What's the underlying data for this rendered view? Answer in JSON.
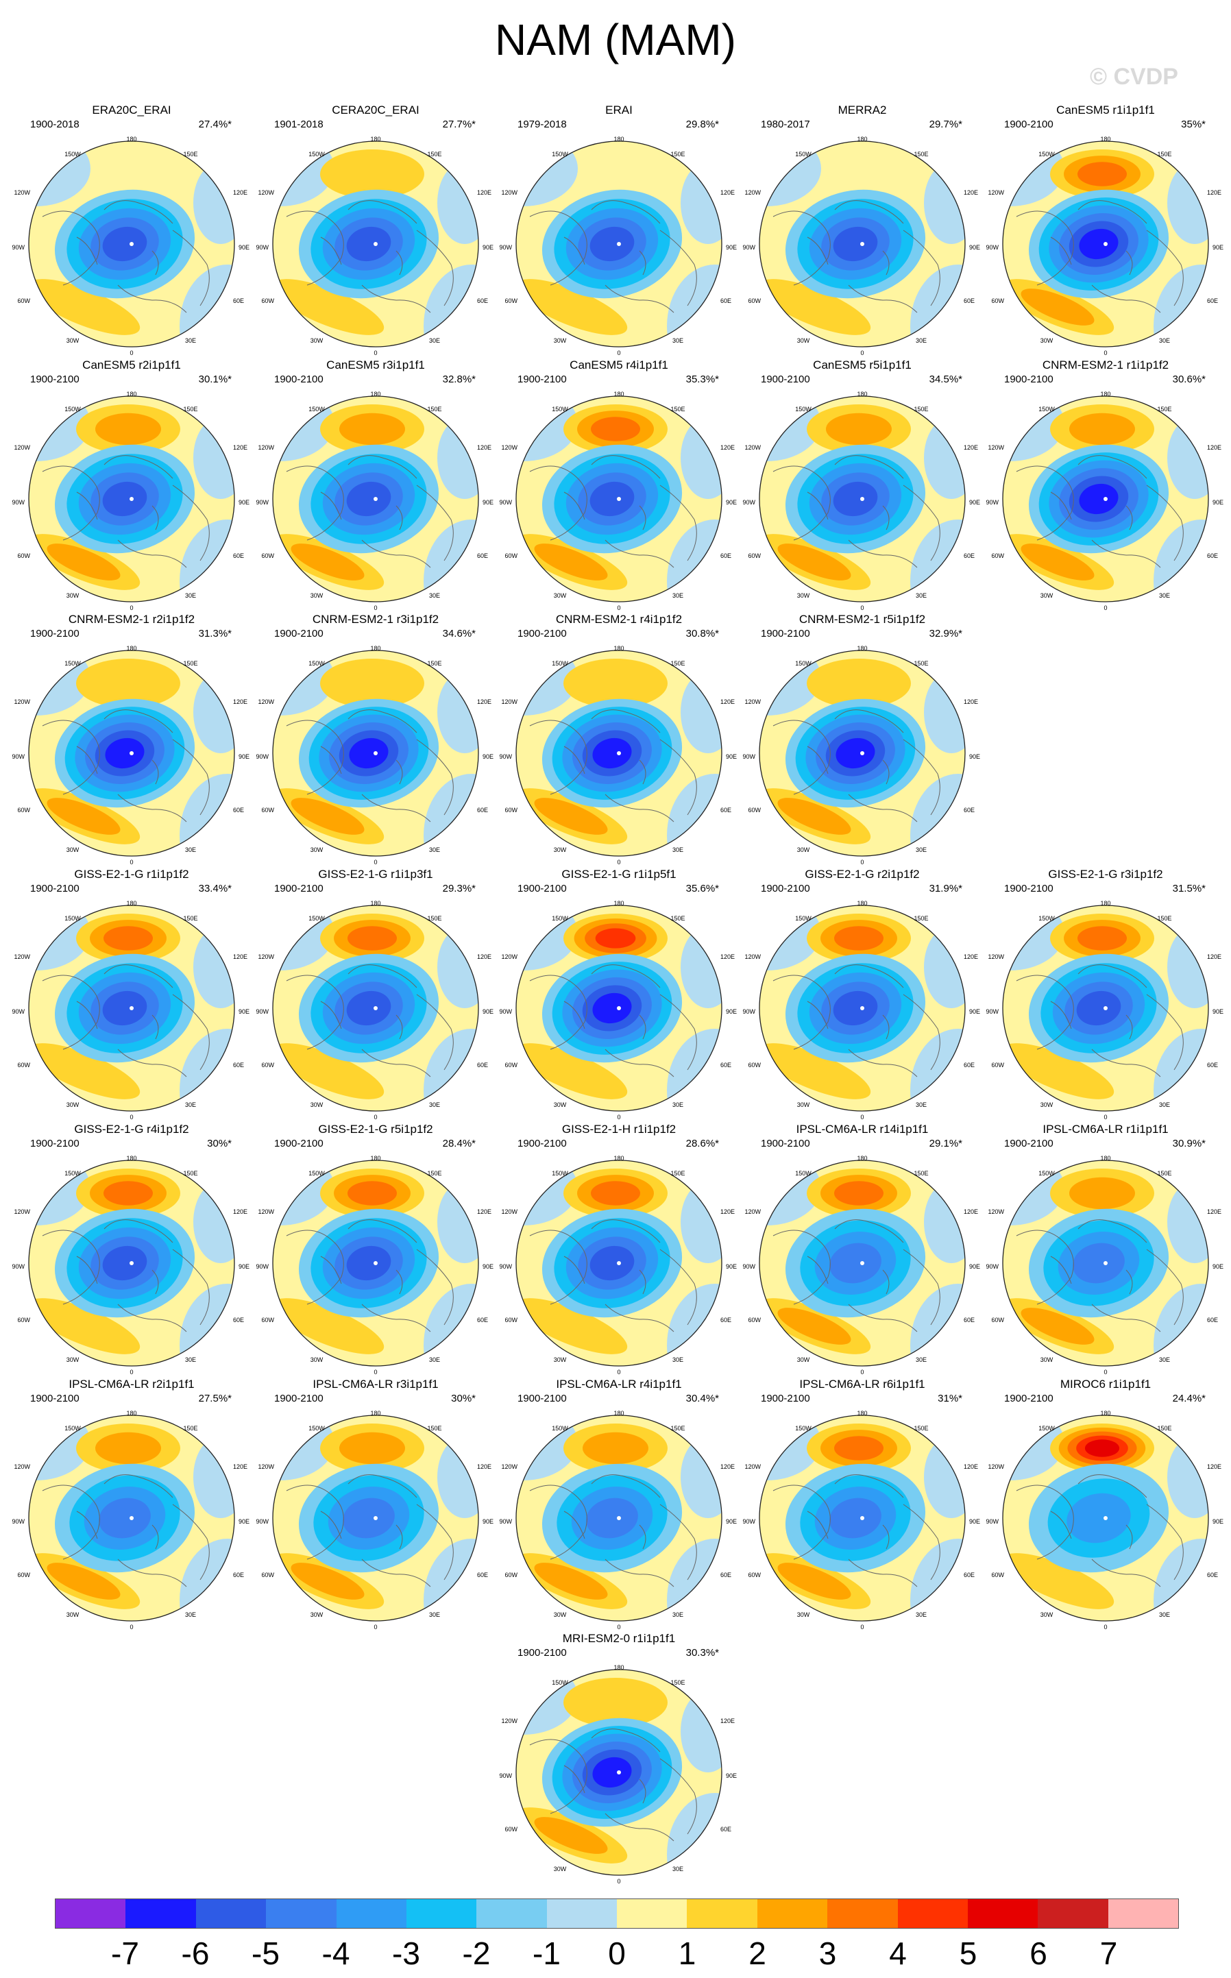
{
  "title": "NAM (MAM)",
  "watermark": "© CVDP",
  "colors": {
    "ocean_light_blue": "#b3dcf2",
    "land_pale_yellow": "#fff5a0",
    "coast": "#666666",
    "border": "#222222"
  },
  "map_labels": {
    "lon_top": "180",
    "lon_150w": "150W",
    "lon_150e": "150E",
    "lon_120w": "120W",
    "lon_120e": "120E",
    "lon_90w": "90W",
    "lon_90e": "90E",
    "lon_60w": "60W",
    "lon_60e": "60E",
    "lon_30w": "30W",
    "lon_30e": "30E",
    "lon_bottom": "0"
  },
  "panels": [
    {
      "title": "ERA20C_ERAI",
      "years": "1900-2018",
      "pct": "27.4%*",
      "pos": 0.3,
      "neg": -5,
      "atl": 1.5
    },
    {
      "title": "CERA20C_ERAI",
      "years": "1901-2018",
      "pct": "27.7%*",
      "pos": 1.5,
      "neg": -5,
      "atl": 1.5
    },
    {
      "title": "ERAI",
      "years": "1979-2018",
      "pct": "29.8%*",
      "pos": 0.3,
      "neg": -5,
      "atl": 1.5
    },
    {
      "title": "MERRA2",
      "years": "1980-2017",
      "pct": "29.7%*",
      "pos": 0.3,
      "neg": -5,
      "atl": 1.5
    },
    {
      "title": "CanESM5 r1i1p1f1",
      "years": "1900-2100",
      "pct": "35%*",
      "pos": 3.5,
      "neg": -6,
      "atl": 2
    },
    {
      "title": "CanESM5 r2i1p1f1",
      "years": "1900-2100",
      "pct": "30.1%*",
      "pos": 2.5,
      "neg": -5,
      "atl": 2
    },
    {
      "title": "CanESM5 r3i1p1f1",
      "years": "1900-2100",
      "pct": "32.8%*",
      "pos": 2.5,
      "neg": -5,
      "atl": 2
    },
    {
      "title": "CanESM5 r4i1p1f1",
      "years": "1900-2100",
      "pct": "35.3%*",
      "pos": 3,
      "neg": -5,
      "atl": 2
    },
    {
      "title": "CanESM5 r5i1p1f1",
      "years": "1900-2100",
      "pct": "34.5%*",
      "pos": 2.5,
      "neg": -5,
      "atl": 2
    },
    {
      "title": "CNRM-ESM2-1 r1i1p1f2",
      "years": "1900-2100",
      "pct": "30.6%*",
      "pos": 2,
      "neg": -6,
      "atl": 2
    },
    {
      "title": "CNRM-ESM2-1 r2i1p1f2",
      "years": "1900-2100",
      "pct": "31.3%*",
      "pos": 1.5,
      "neg": -6,
      "atl": 2.5
    },
    {
      "title": "CNRM-ESM2-1 r3i1p1f2",
      "years": "1900-2100",
      "pct": "34.6%*",
      "pos": 1.5,
      "neg": -6,
      "atl": 2.5
    },
    {
      "title": "CNRM-ESM2-1 r4i1p1f2",
      "years": "1900-2100",
      "pct": "30.8%*",
      "pos": 1.5,
      "neg": -6,
      "atl": 2.5
    },
    {
      "title": "CNRM-ESM2-1 r5i1p1f2",
      "years": "1900-2100",
      "pct": "32.9%*",
      "pos": 1.5,
      "neg": -6,
      "atl": 2.5
    },
    {
      "title": "GISS-E2-1-G r1i1p1f2",
      "years": "1900-2100",
      "pct": "33.4%*",
      "pos": 3.5,
      "neg": -5,
      "atl": 1.5
    },
    {
      "title": "GISS-E2-1-G r1i1p3f1",
      "years": "1900-2100",
      "pct": "29.3%*",
      "pos": 3.5,
      "neg": -5,
      "atl": 1.5
    },
    {
      "title": "GISS-E2-1-G r1i1p5f1",
      "years": "1900-2100",
      "pct": "35.6%*",
      "pos": 4.5,
      "neg": -6,
      "atl": 1.5
    },
    {
      "title": "GISS-E2-1-G r2i1p1f2",
      "years": "1900-2100",
      "pct": "31.9%*",
      "pos": 3.5,
      "neg": -5,
      "atl": 1.5
    },
    {
      "title": "GISS-E2-1-G r3i1p1f2",
      "years": "1900-2100",
      "pct": "31.5%*",
      "pos": 3.5,
      "neg": -5,
      "atl": 1.5
    },
    {
      "title": "GISS-E2-1-G r4i1p1f2",
      "years": "1900-2100",
      "pct": "30%*",
      "pos": 3.5,
      "neg": -5,
      "atl": 1.5
    },
    {
      "title": "GISS-E2-1-G r5i1p1f2",
      "years": "1900-2100",
      "pct": "28.4%*",
      "pos": 3.5,
      "neg": -5,
      "atl": 1.5
    },
    {
      "title": "GISS-E2-1-H r1i1p1f2",
      "years": "1900-2100",
      "pct": "28.6%*",
      "pos": 3.5,
      "neg": -5,
      "atl": 1.5
    },
    {
      "title": "IPSL-CM6A-LR r14i1p1f1",
      "years": "1900-2100",
      "pct": "29.1%*",
      "pos": 3,
      "neg": -4,
      "atl": 2.5
    },
    {
      "title": "IPSL-CM6A-LR r1i1p1f1",
      "years": "1900-2100",
      "pct": "30.9%*",
      "pos": 2.5,
      "neg": -4,
      "atl": 2.5
    },
    {
      "title": "IPSL-CM6A-LR r2i1p1f1",
      "years": "1900-2100",
      "pct": "27.5%*",
      "pos": 2,
      "neg": -4,
      "atl": 2.5
    },
    {
      "title": "IPSL-CM6A-LR r3i1p1f1",
      "years": "1900-2100",
      "pct": "30%*",
      "pos": 2,
      "neg": -4,
      "atl": 2.5
    },
    {
      "title": "IPSL-CM6A-LR r4i1p1f1",
      "years": "1900-2100",
      "pct": "30.4%*",
      "pos": 2.5,
      "neg": -4,
      "atl": 2.5
    },
    {
      "title": "IPSL-CM6A-LR r6i1p1f1",
      "years": "1900-2100",
      "pct": "31%*",
      "pos": 3,
      "neg": -4,
      "atl": 2.5
    },
    {
      "title": "MIROC6 r1i1p1f1",
      "years": "1900-2100",
      "pct": "24.4%*",
      "pos": 5,
      "neg": -3,
      "atl": 1
    },
    {
      "title": "MRI-ESM2-0 r1i1p1f1",
      "years": "1900-2100",
      "pct": "30.3%*",
      "pos": 1.5,
      "neg": -6,
      "atl": 2.5
    }
  ],
  "colorbar": {
    "colors": [
      "#8a2be2",
      "#1a1aff",
      "#2e5be6",
      "#3a7ff0",
      "#2f9cf5",
      "#14c0f5",
      "#78cdf2",
      "#b3dcf2",
      "#fff5a0",
      "#ffd42e",
      "#ffa500",
      "#ff7300",
      "#ff3200",
      "#e60000",
      "#cc1f1f",
      "#ffb3b3"
    ],
    "labels": [
      "-7",
      "-6",
      "-5",
      "-4",
      "-3",
      "-2",
      "-1",
      "0",
      "1",
      "2",
      "3",
      "4",
      "5",
      "6",
      "7"
    ]
  }
}
